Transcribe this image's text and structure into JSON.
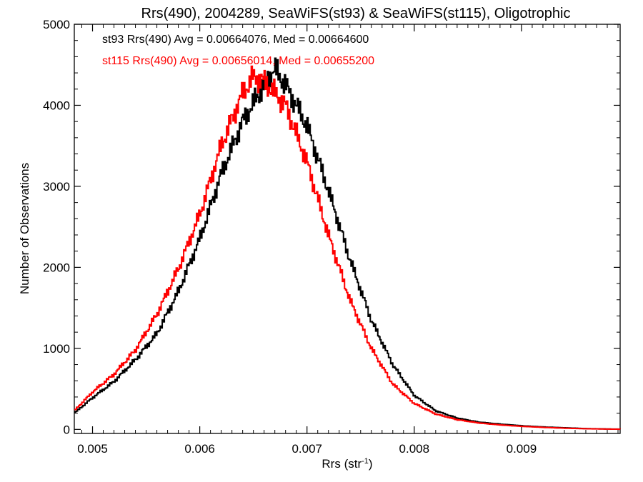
{
  "chart_data": {
    "type": "line",
    "step": true,
    "title": "Rrs(490), 2004289, SeaWiFS(st93) & SeaWiFS(st115), Oligotrophic",
    "xlabel": "Rrs (str",
    "xlabel_sup": "-1",
    "xlabel_close": ")",
    "ylabel": "Number of Observations",
    "xlim": [
      0.00483,
      0.00992
    ],
    "ylim": [
      -50,
      5000
    ],
    "x_ticks": [
      0.005,
      0.006,
      0.007,
      0.008,
      0.009
    ],
    "x_tick_labels": [
      "0.005",
      "0.006",
      "0.007",
      "0.008",
      "0.009"
    ],
    "y_ticks": [
      0,
      1000,
      2000,
      3000,
      4000,
      5000
    ],
    "y_tick_labels": [
      "0",
      "1000",
      "2000",
      "3000",
      "4000",
      "5000"
    ],
    "grid": false,
    "legend_position": "top-left",
    "annotations": [
      {
        "text": "st93 Rrs(490) Avg = 0.00664076, Med = 0.00664600",
        "color": "#000000"
      },
      {
        "text": "st115 Rrs(490) Avg = 0.00656014, Med = 0.00655200",
        "color": "#ff0000"
      }
    ],
    "series": [
      {
        "name": "st93",
        "color": "#000000",
        "x": [
          0.00483,
          0.005,
          0.0052,
          0.0054,
          0.0056,
          0.0058,
          0.006,
          0.0062,
          0.0064,
          0.0066,
          0.0067,
          0.0068,
          0.007,
          0.0072,
          0.0074,
          0.0076,
          0.0078,
          0.008,
          0.0082,
          0.0084,
          0.0086,
          0.0088,
          0.009,
          0.0092,
          0.0094,
          0.0096,
          0.0098,
          0.00992
        ],
        "y": [
          200,
          390,
          590,
          860,
          1180,
          1700,
          2350,
          3150,
          3800,
          4250,
          4450,
          4250,
          3750,
          2950,
          2100,
          1350,
          800,
          420,
          230,
          140,
          90,
          65,
          45,
          30,
          20,
          10,
          5,
          3
        ]
      },
      {
        "name": "st115",
        "color": "#ff0000",
        "x": [
          0.00483,
          0.005,
          0.0052,
          0.0054,
          0.0056,
          0.0058,
          0.006,
          0.0062,
          0.0064,
          0.0065,
          0.0066,
          0.0068,
          0.007,
          0.0072,
          0.0074,
          0.0076,
          0.0078,
          0.008,
          0.0082,
          0.0084,
          0.0086,
          0.0088,
          0.009,
          0.0092,
          0.0094,
          0.0096,
          0.0098,
          0.00992
        ],
        "y": [
          230,
          460,
          680,
          980,
          1420,
          1980,
          2650,
          3500,
          4150,
          4350,
          4300,
          4000,
          3300,
          2400,
          1600,
          1000,
          560,
          320,
          190,
          120,
          80,
          55,
          38,
          25,
          15,
          8,
          4,
          2
        ]
      }
    ]
  }
}
